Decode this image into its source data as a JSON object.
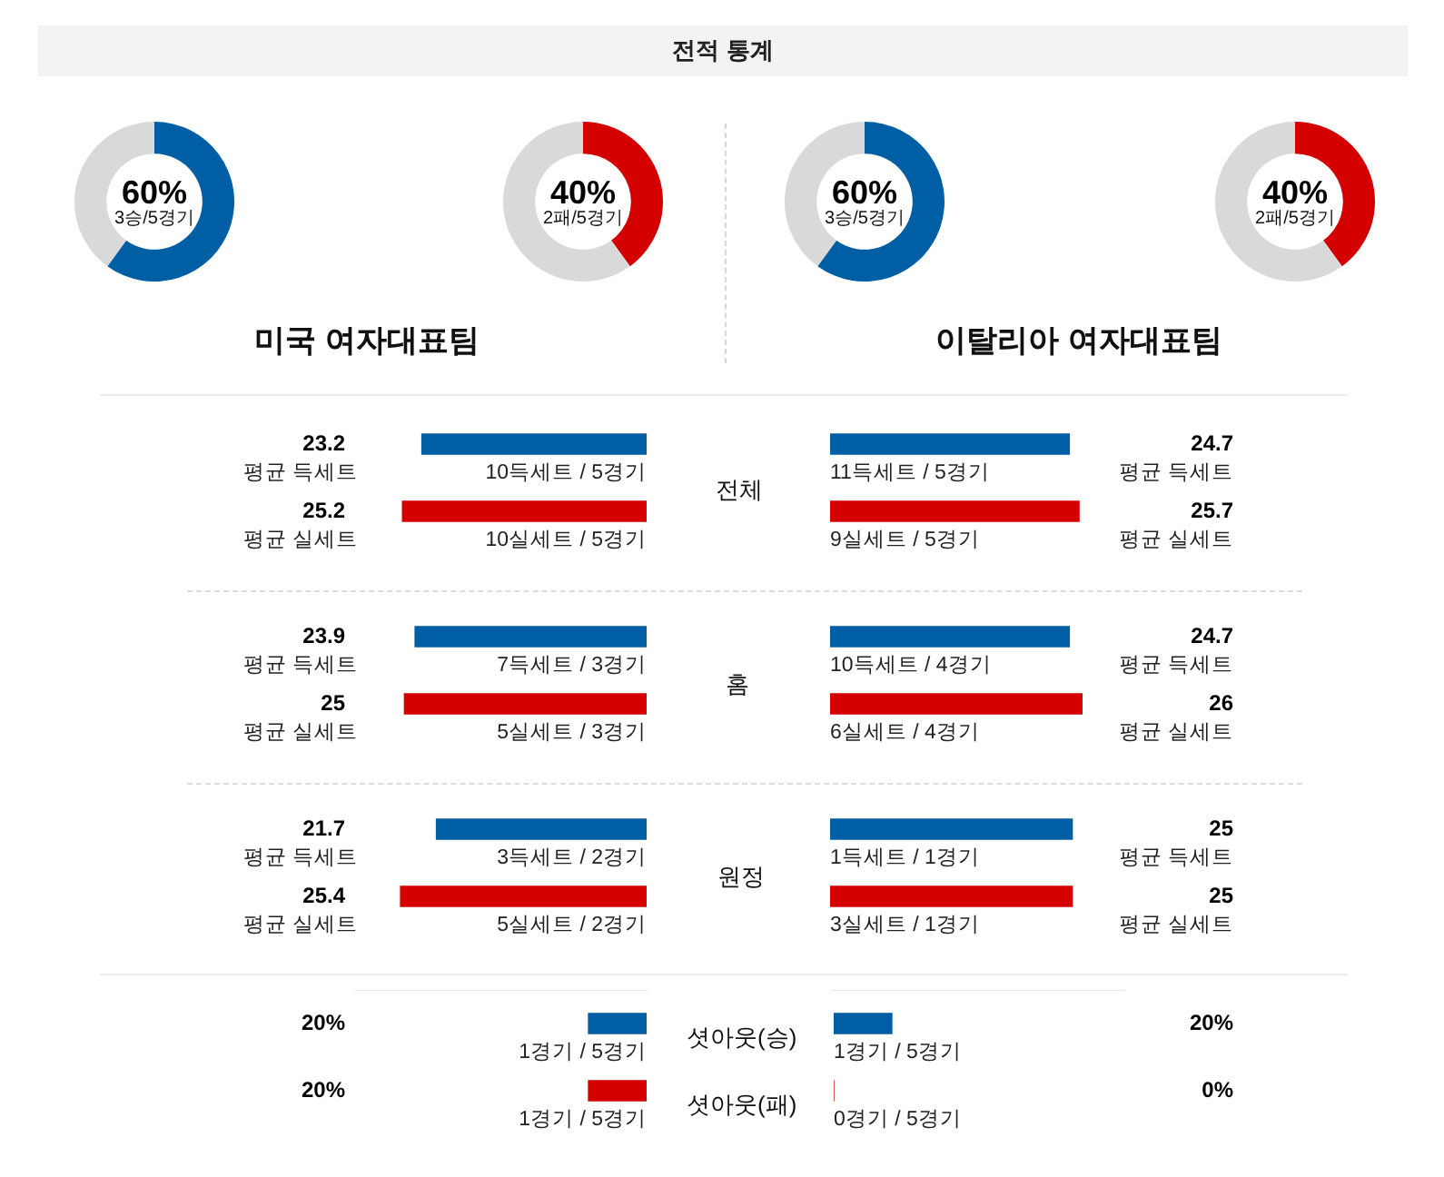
{
  "chart_data": [
    {
      "type": "other",
      "title": "전적 통계"
    },
    {
      "type": "donut",
      "categories": [
        null,
        null
      ],
      "values": [
        60,
        40
      ],
      "colors": [
        "#005ea5",
        "#d9d9d9"
      ],
      "value_labels": [
        "60%",
        null
      ],
      "annotations": [
        "3승/5경기"
      ]
    },
    {
      "type": "donut",
      "categories": [
        null,
        null
      ],
      "values": [
        40,
        60
      ],
      "colors": [
        "#d40000",
        "#d9d9d9"
      ],
      "value_labels": [
        "40%",
        null
      ],
      "annotations": [
        "2패/5경기"
      ]
    },
    {
      "type": "donut",
      "categories": [
        null,
        null
      ],
      "values": [
        60,
        40
      ],
      "colors": [
        "#005ea5",
        "#d9d9d9"
      ],
      "value_labels": [
        "60%",
        null
      ],
      "annotations": [
        "3승/5경기"
      ]
    },
    {
      "type": "donut",
      "categories": [
        null,
        null
      ],
      "values": [
        40,
        60
      ],
      "colors": [
        "#d40000",
        "#d9d9d9"
      ],
      "value_labels": [
        "40%",
        null
      ],
      "annotations": [
        "2패/5경기"
      ]
    },
    {
      "type": "other",
      "title": "미국 여자대표팀"
    },
    {
      "type": "other",
      "title": "이탈리아 여자대표팀"
    },
    {
      "type": "bar",
      "orientation": "horizontal",
      "categories": [
        "평균 득세트",
        "평균 실세트"
      ],
      "values": [
        23.2,
        25.2
      ],
      "colors": [
        "#005ea5",
        "#d40000"
      ],
      "value_labels": [
        "23.2",
        "25.2"
      ],
      "annotations": [
        "10득세트 / 5경기",
        "10실세트 / 5경기"
      ],
      "tick_labels": "y"
    },
    {
      "type": "other",
      "title": "전체"
    },
    {
      "type": "bar",
      "orientation": "horizontal",
      "categories": [
        "평균 득세트",
        "평균 실세트"
      ],
      "values": [
        24.7,
        25.7
      ],
      "colors": [
        "#005ea5",
        "#d40000"
      ],
      "value_labels": [
        "24.7",
        "25.7"
      ],
      "annotations": [
        "11득세트 / 5경기",
        "9실세트 / 5경기"
      ],
      "tick_labels": "y"
    },
    {
      "type": "bar",
      "orientation": "horizontal",
      "categories": [
        "평균 득세트",
        "평균 실세트"
      ],
      "values": [
        23.9,
        25
      ],
      "colors": [
        "#005ea5",
        "#d40000"
      ],
      "value_labels": [
        "23.9",
        "25"
      ],
      "annotations": [
        "7득세트 / 3경기",
        "5실세트 / 3경기"
      ],
      "tick_labels": "y"
    },
    {
      "type": "other",
      "title": "홈"
    },
    {
      "type": "bar",
      "orientation": "horizontal",
      "categories": [
        "평균 득세트",
        "평균 실세트"
      ],
      "values": [
        24.7,
        26
      ],
      "colors": [
        "#005ea5",
        "#d40000"
      ],
      "value_labels": [
        "24.7",
        "26"
      ],
      "annotations": [
        "10득세트 / 4경기",
        "6실세트 / 4경기"
      ],
      "tick_labels": "y"
    },
    {
      "type": "bar",
      "orientation": "horizontal",
      "categories": [
        "평균 득세트",
        "평균 실세트"
      ],
      "values": [
        21.7,
        25.4
      ],
      "colors": [
        "#005ea5",
        "#d40000"
      ],
      "value_labels": [
        "21.7",
        "25.4"
      ],
      "annotations": [
        "3득세트 / 2경기",
        "5실세트 / 2경기"
      ],
      "tick_labels": "y"
    },
    {
      "type": "other",
      "title": "원정"
    },
    {
      "type": "bar",
      "orientation": "horizontal",
      "categories": [
        "평균 득세트",
        "평균 실세트"
      ],
      "values": [
        25,
        25
      ],
      "colors": [
        "#005ea5",
        "#d40000"
      ],
      "value_labels": [
        "25",
        "25"
      ],
      "annotations": [
        "1득세트 / 1경기",
        "3실세트 / 1경기"
      ],
      "tick_labels": "y"
    },
    {
      "type": "bar",
      "orientation": "horizontal",
      "categories": [
        null,
        null
      ],
      "values": [
        20,
        20
      ],
      "colors": [
        "#005ea5",
        "#d40000"
      ],
      "value_labels": [
        "20%",
        "20%"
      ],
      "annotations": [
        "1경기 / 5경기",
        "1경기 / 5경기"
      ],
      "xlim": [
        100,
        0
      ],
      "tick_labels": false
    },
    {
      "type": "bar",
      "orientation": "horizontal",
      "categories": [
        "셧아웃(승)",
        "셧아웃(패)"
      ],
      "values": [
        20,
        0
      ],
      "colors": [
        "#005ea5",
        "#d40000"
      ],
      "value_labels": [
        "20%",
        "0%"
      ],
      "annotations": [
        "1경기 / 5경기",
        "0경기 / 5경기"
      ],
      "xlim": [
        0,
        100
      ],
      "tick_labels": "y"
    }
  ]
}
